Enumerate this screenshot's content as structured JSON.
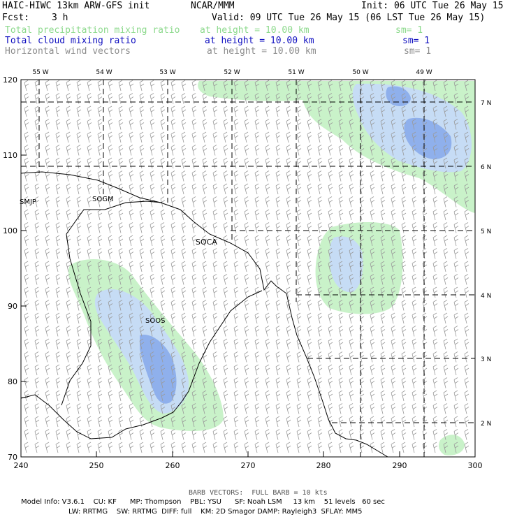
{
  "header": {
    "title": "HAIC-HIWC 13km ARW-GFS init",
    "center": "NCAR/MMM",
    "init": "Init: 06 UTC Tue 26 May 15",
    "fcst_label": "Fcst:",
    "fcst_value": "3 h",
    "valid": "Valid: 09 UTC Tue 26 May 15 (06 LST Tue 26 May 15)"
  },
  "fields": [
    {
      "name": "Total precipitation mixing ratio",
      "height": "at height = 10.00 km",
      "sm": "sm= 1",
      "color": "#8cd98c"
    },
    {
      "name": "Total cloud mixing ratio",
      "height": "at height = 10.00 km",
      "sm": "sm= 1",
      "color": "#1010c0"
    },
    {
      "name": "Horizontal wind vectors",
      "height": "at height = 10.00 km",
      "sm": "sm= 1",
      "color": "#8c8c8c"
    }
  ],
  "map": {
    "x_ticks": [
      "240",
      "250",
      "260",
      "270",
      "280",
      "290",
      "300"
    ],
    "y_ticks": [
      "70",
      "80",
      "90",
      "100",
      "110",
      "120"
    ],
    "lon_labels": [
      "55 W",
      "54 W",
      "53 W",
      "52 W",
      "51 W",
      "50 W",
      "49 W"
    ],
    "lat_labels": [
      "7 N",
      "6 N",
      "5 N",
      "4 N",
      "3 N",
      "2 N"
    ],
    "stations": [
      "SMJP",
      "SOGM",
      "SOCA",
      "SOOS"
    ],
    "station_color": "#cc00cc"
  },
  "footer": {
    "barb": "BARB VECTORS:  FULL BARB = 10 kts",
    "line1": "Model Info: V3.6.1    CU: KF      MP: Thompson    PBL: YSU      SF: Noah LSM     13 km    51 levels   60 sec",
    "line2": "LW: RRTMG    SW: RRTMG  DIFF: full    KM: 2D Smagor DAMP: Rayleigh3  SFLAY: MM5"
  }
}
